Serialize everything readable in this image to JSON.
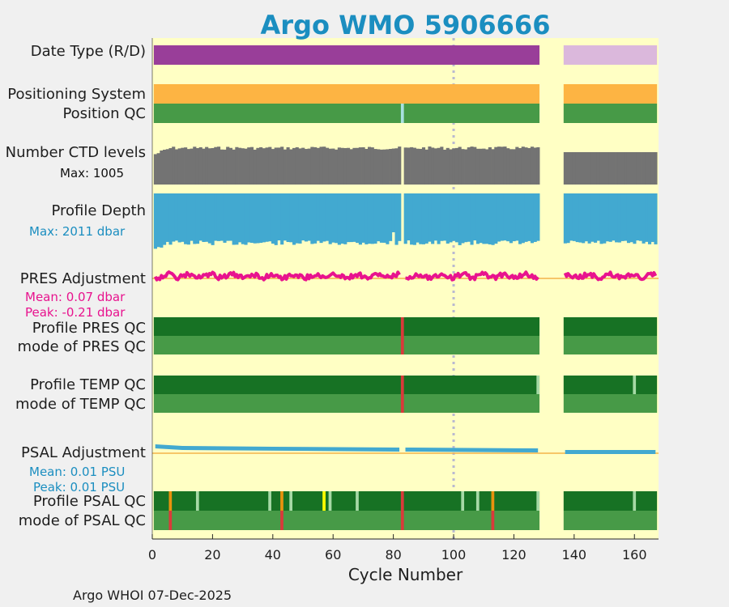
{
  "title": "Argo WMO 5906666",
  "footer": "Argo WHOI 07-Dec-2025",
  "colors": {
    "background": "#ffffc4",
    "realtime": "#993e99",
    "delayed": "#dbb8dc",
    "positioning": "#fdb443",
    "qc_good": "#177224",
    "qc_good_mode": "#479a47",
    "qc_probably_good": "#a6d9a6",
    "qc_bad": "#d93a3a",
    "qc_orange": "#e8920e",
    "qc_yellow": "#ffff00",
    "pos_qc_odd": "#a8e0e0",
    "ctd_levels": "#737373",
    "depth": "#42a9d0",
    "pres_adj": "#e8138e",
    "psal_adj": "#42a9d0",
    "zero_line": "#f3b34a",
    "title": "#1b8ec0"
  },
  "rows": {
    "date_type": "Date Type (R/D)",
    "positioning": "Positioning System",
    "position_qc": "Position QC",
    "ctd_levels": "Number CTD levels",
    "profile_depth": "Profile Depth",
    "pres_adj": "PRES Adjustment",
    "profile_pres_qc": "Profile PRES QC",
    "mode_pres_qc": "mode of PRES QC",
    "profile_temp_qc": "Profile TEMP QC",
    "mode_temp_qc": "mode of TEMP QC",
    "psal_adj": "PSAL Adjustment",
    "profile_psal_qc": "Profile PSAL QC",
    "mode_psal_qc": "mode of PSAL QC"
  },
  "annotations": {
    "ctd_max": "Max: 1005",
    "depth_max": "Max: 2011 dbar",
    "pres_mean": "Mean: 0.07 dbar",
    "pres_peak": "Peak: -0.21 dbar",
    "psal_mean": "Mean: 0.01 PSU",
    "psal_peak": "Peak: 0.01 PSU"
  },
  "chart_data": {
    "type": "table",
    "title": "Argo WMO 5906666",
    "xlabel": "Cycle Number",
    "xlim": [
      0,
      168
    ],
    "xticks": [
      0,
      20,
      40,
      60,
      80,
      100,
      120,
      140,
      160
    ],
    "reference_cycle": 100,
    "cycles_present": [
      [
        0.5,
        128.5
      ],
      [
        136.5,
        167.5
      ]
    ],
    "date_type_realtime_until": 128,
    "date_type_delayed_from": 137,
    "position_qc_flag_cycles": [
      83
    ],
    "ctd_levels_max": 1005,
    "profile_depth_max_dbar": 2011,
    "missing_profile_cycles": [
      83
    ],
    "pres_qc_bad_cycles": [
      83
    ],
    "temp_qc_bad_cycles": [
      83
    ],
    "temp_qc_probably_good_cycles": [
      128,
      160
    ],
    "psal_qc_orange_cycles": [
      6,
      43,
      113
    ],
    "psal_qc_yellow_cycles": [
      57
    ],
    "psal_qc_probably_good_cycles": [
      15,
      39,
      46,
      59,
      68,
      103,
      108,
      128,
      160
    ],
    "psal_qc_bad_cycles": [
      83
    ],
    "psal_mode_bad_cycles": [
      6,
      43,
      83,
      113
    ],
    "pres_adjustment_mean_dbar": 0.07,
    "pres_adjustment_peak_dbar": -0.21,
    "psal_adjustment_mean_psu": 0.01,
    "psal_adjustment_peak_psu": 0.01
  }
}
